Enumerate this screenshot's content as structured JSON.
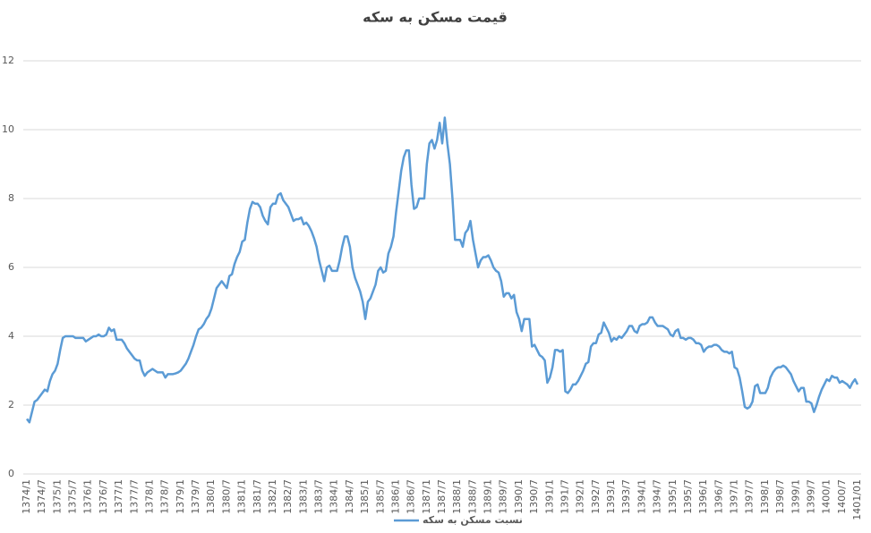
{
  "chart_data": {
    "type": "line",
    "title": "قیمت مسکن به سکه",
    "categories": [
      "1374/1",
      null,
      null,
      null,
      null,
      null,
      "1374/7",
      null,
      null,
      null,
      null,
      null,
      "1375/1",
      null,
      null,
      null,
      null,
      null,
      "1375/7",
      null,
      null,
      null,
      null,
      null,
      "1376/1",
      null,
      null,
      null,
      null,
      null,
      "1376/7",
      null,
      null,
      null,
      null,
      null,
      "1377/1",
      null,
      null,
      null,
      null,
      null,
      "1377/7",
      null,
      null,
      null,
      null,
      null,
      "1378/1",
      null,
      null,
      null,
      null,
      null,
      "1378/7",
      null,
      null,
      null,
      null,
      null,
      "1379/1",
      null,
      null,
      null,
      null,
      null,
      "1379/7",
      null,
      null,
      null,
      null,
      null,
      "1380/1",
      null,
      null,
      null,
      null,
      null,
      "1380/7",
      null,
      null,
      null,
      null,
      null,
      "1381/1",
      null,
      null,
      null,
      null,
      null,
      "1381/7",
      null,
      null,
      null,
      null,
      null,
      "1382/1",
      null,
      null,
      null,
      null,
      null,
      "1382/7",
      null,
      null,
      null,
      null,
      null,
      "1383/1",
      null,
      null,
      null,
      null,
      null,
      "1383/7",
      null,
      null,
      null,
      null,
      null,
      "1384/1",
      null,
      null,
      null,
      null,
      null,
      "1384/7",
      null,
      null,
      null,
      null,
      null,
      "1385/1",
      null,
      null,
      null,
      null,
      null,
      "1385/7",
      null,
      null,
      null,
      null,
      null,
      "1386/1",
      null,
      null,
      null,
      null,
      null,
      "1386/7",
      null,
      null,
      null,
      null,
      null,
      "1387/1",
      null,
      null,
      null,
      null,
      null,
      "1387/7",
      null,
      null,
      null,
      null,
      null,
      "1388/1",
      null,
      null,
      null,
      null,
      null,
      "1388/7",
      null,
      null,
      null,
      null,
      null,
      "1389/1",
      null,
      null,
      null,
      null,
      null,
      "1389/7",
      null,
      null,
      null,
      null,
      null,
      "1390/1",
      null,
      null,
      null,
      null,
      null,
      "1390/7",
      null,
      null,
      null,
      null,
      null,
      "1391/1",
      null,
      null,
      null,
      null,
      null,
      "1391/7",
      null,
      null,
      null,
      null,
      null,
      "1392/1",
      null,
      null,
      null,
      null,
      null,
      "1392/7",
      null,
      null,
      null,
      null,
      null,
      "1393/1",
      null,
      null,
      null,
      null,
      null,
      "1393/7",
      null,
      null,
      null,
      null,
      null,
      "1394/1",
      null,
      null,
      null,
      null,
      null,
      "1394/7",
      null,
      null,
      null,
      null,
      null,
      "1395/1",
      null,
      null,
      null,
      null,
      null,
      "1395/7",
      null,
      null,
      null,
      null,
      null,
      "1396/1",
      null,
      null,
      null,
      null,
      null,
      "1396/7",
      null,
      null,
      null,
      null,
      null,
      "1397/1",
      null,
      null,
      null,
      null,
      null,
      "1397/7",
      null,
      null,
      null,
      null,
      null,
      "1398/1",
      null,
      null,
      null,
      null,
      null,
      "1398/7",
      null,
      null,
      null,
      null,
      null,
      "1399/1",
      null,
      null,
      null,
      null,
      null,
      "1399/7",
      null,
      null,
      null,
      null,
      null,
      "1400/1",
      null,
      null,
      null,
      null,
      null,
      "1400/7",
      null,
      null,
      null,
      null,
      null,
      "1401/01"
    ],
    "series": [
      {
        "name": "نسبت مسکن به سکه",
        "color": "#5b9bd5",
        "values": [
          1.6,
          1.5,
          1.8,
          2.1,
          2.15,
          2.25,
          2.35,
          2.45,
          2.4,
          2.7,
          2.9,
          3.0,
          3.2,
          3.6,
          3.95,
          4.0,
          4.0,
          4.0,
          4.0,
          3.95,
          3.95,
          3.95,
          3.95,
          3.85,
          3.9,
          3.95,
          4.0,
          4.0,
          4.05,
          4.0,
          4.0,
          4.05,
          4.25,
          4.15,
          4.2,
          3.9,
          3.9,
          3.9,
          3.8,
          3.65,
          3.55,
          3.45,
          3.35,
          3.3,
          3.3,
          3.0,
          2.85,
          2.95,
          3.0,
          3.05,
          3.0,
          2.95,
          2.95,
          2.95,
          2.8,
          2.9,
          2.9,
          2.9,
          2.92,
          2.95,
          3.0,
          3.1,
          3.2,
          3.35,
          3.55,
          3.75,
          4.0,
          4.2,
          4.25,
          4.35,
          4.5,
          4.6,
          4.8,
          5.1,
          5.4,
          5.5,
          5.6,
          5.5,
          5.4,
          5.75,
          5.8,
          6.1,
          6.3,
          6.45,
          6.75,
          6.8,
          7.3,
          7.7,
          7.9,
          7.85,
          7.85,
          7.75,
          7.5,
          7.35,
          7.25,
          7.75,
          7.85,
          7.85,
          8.1,
          8.15,
          7.95,
          7.85,
          7.75,
          7.55,
          7.35,
          7.4,
          7.4,
          7.45,
          7.25,
          7.3,
          7.2,
          7.05,
          6.85,
          6.6,
          6.2,
          5.9,
          5.6,
          6.0,
          6.05,
          5.9,
          5.9,
          5.9,
          6.2,
          6.6,
          6.9,
          6.9,
          6.6,
          6.0,
          5.7,
          5.5,
          5.3,
          5.0,
          4.5,
          5.0,
          5.1,
          5.3,
          5.5,
          5.9,
          6.0,
          5.85,
          5.9,
          6.4,
          6.6,
          6.9,
          7.6,
          8.2,
          8.8,
          9.2,
          9.4,
          9.4,
          8.4,
          7.7,
          7.75,
          8.0,
          8.0,
          8.0,
          9.0,
          9.6,
          9.7,
          9.45,
          9.7,
          10.2,
          9.6,
          10.35,
          9.6,
          9.0,
          8.0,
          6.8,
          6.8,
          6.8,
          6.6,
          7.0,
          7.1,
          7.35,
          6.8,
          6.4,
          6.0,
          6.2,
          6.3,
          6.3,
          6.35,
          6.2,
          6.0,
          5.9,
          5.85,
          5.6,
          5.15,
          5.25,
          5.25,
          5.1,
          5.2,
          4.7,
          4.5,
          4.15,
          4.5,
          4.5,
          4.5,
          3.7,
          3.75,
          3.6,
          3.45,
          3.4,
          3.3,
          2.65,
          2.8,
          3.1,
          3.6,
          3.6,
          3.55,
          3.6,
          2.4,
          2.35,
          2.45,
          2.6,
          2.6,
          2.7,
          2.85,
          3.0,
          3.2,
          3.25,
          3.7,
          3.8,
          3.8,
          4.05,
          4.1,
          4.4,
          4.25,
          4.1,
          3.85,
          3.95,
          3.9,
          4.0,
          3.95,
          4.05,
          4.15,
          4.3,
          4.3,
          4.15,
          4.1,
          4.3,
          4.35,
          4.35,
          4.4,
          4.55,
          4.55,
          4.4,
          4.3,
          4.3,
          4.3,
          4.25,
          4.2,
          4.05,
          4.0,
          4.15,
          4.2,
          3.95,
          3.95,
          3.9,
          3.95,
          3.95,
          3.9,
          3.8,
          3.8,
          3.75,
          3.55,
          3.65,
          3.7,
          3.7,
          3.75,
          3.75,
          3.7,
          3.6,
          3.55,
          3.55,
          3.5,
          3.55,
          3.1,
          3.05,
          2.8,
          2.4,
          1.95,
          1.9,
          1.95,
          2.1,
          2.55,
          2.6,
          2.35,
          2.35,
          2.35,
          2.5,
          2.8,
          2.95,
          3.05,
          3.1,
          3.1,
          3.15,
          3.1,
          3.0,
          2.9,
          2.7,
          2.55,
          2.4,
          2.5,
          2.5,
          2.1,
          2.1,
          2.05,
          1.8,
          2.0,
          2.25,
          2.45,
          2.6,
          2.75,
          2.7,
          2.85,
          2.8,
          2.8,
          2.65,
          2.7,
          2.65,
          2.6,
          2.5,
          2.65,
          2.75,
          2.6
        ]
      }
    ],
    "ylim": [
      0,
      12
    ],
    "yticks": [
      0,
      2,
      4,
      6,
      8,
      10,
      12
    ],
    "grid": true,
    "legend": "bottom"
  }
}
